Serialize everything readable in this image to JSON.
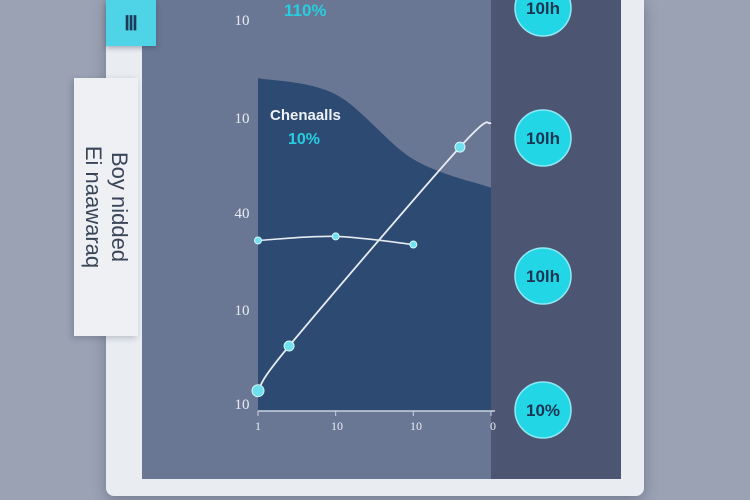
{
  "corner_tag": "Ⅲ",
  "side_label": [
    "Boy nidded",
    "Ei naawaraq"
  ],
  "chart_data": {
    "type": "line",
    "title": "Chenaalls",
    "title_value": "10%",
    "top_value": "110%",
    "y_tick_labels": [
      "10",
      "10",
      "40",
      "10",
      "10"
    ],
    "x_tick_labels": [
      "1",
      "10",
      "10",
      "0"
    ],
    "series": [
      {
        "x": [
          0,
          1,
          2
        ],
        "y": [
          0.42,
          0.43,
          0.41
        ]
      },
      {
        "x": [
          0,
          0.4,
          2.6,
          3
        ],
        "y": [
          0.05,
          0.16,
          0.65,
          0.71
        ]
      }
    ],
    "shaded_curve": [
      0.82,
      0.78,
      0.62,
      0.55
    ],
    "badges": [
      "10lh",
      "10lh",
      "10lh",
      "10%"
    ],
    "colors": {
      "panel": "#6a7794",
      "plot_fill": "#2c4a72",
      "right_panel": "#4c5672",
      "line": "#e6ecf2",
      "point": "#6fe0ee",
      "badge": "#22d6e6",
      "badge_text": "#1b3553",
      "accent_text": "#25cfe0"
    }
  }
}
